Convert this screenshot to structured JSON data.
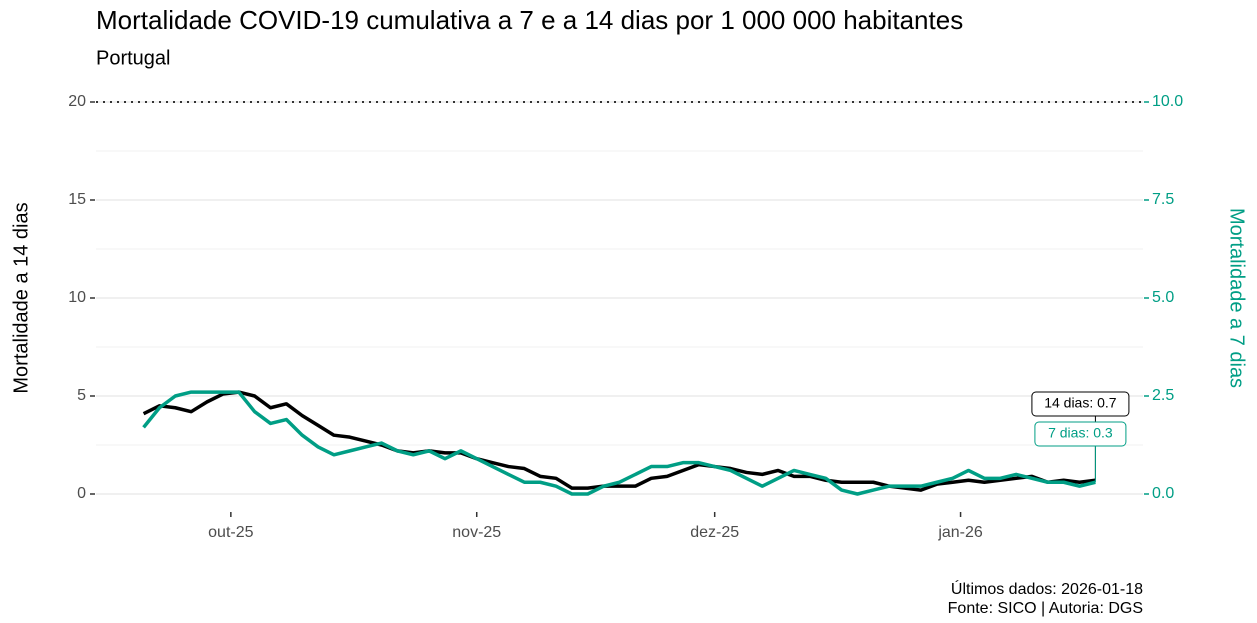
{
  "chart_data": {
    "type": "line",
    "title": "Mortalidade COVID-19 cumulativa a 7 e a 14 dias por 1 000 000 habitantes",
    "subtitle": "Portugal",
    "y_label": "Mortalidade a 14 dias",
    "y2_label": "Mortalidade a 7 dias",
    "caption": [
      "Últimos dados: 2026-01-18",
      "Fonte: SICO | Autoria: DGS"
    ],
    "x": [
      "2025-09-20",
      "2025-09-22",
      "2025-09-24",
      "2025-09-26",
      "2025-09-28",
      "2025-09-30",
      "2025-10-02",
      "2025-10-04",
      "2025-10-06",
      "2025-10-08",
      "2025-10-10",
      "2025-10-12",
      "2025-10-14",
      "2025-10-16",
      "2025-10-18",
      "2025-10-20",
      "2025-10-22",
      "2025-10-24",
      "2025-10-26",
      "2025-10-28",
      "2025-10-30",
      "2025-11-01",
      "2025-11-03",
      "2025-11-05",
      "2025-11-07",
      "2025-11-09",
      "2025-11-11",
      "2025-11-13",
      "2025-11-15",
      "2025-11-17",
      "2025-11-19",
      "2025-11-21",
      "2025-11-23",
      "2025-11-25",
      "2025-11-27",
      "2025-11-29",
      "2025-12-01",
      "2025-12-03",
      "2025-12-05",
      "2025-12-07",
      "2025-12-09",
      "2025-12-11",
      "2025-12-13",
      "2025-12-15",
      "2025-12-17",
      "2025-12-19",
      "2025-12-21",
      "2025-12-23",
      "2025-12-25",
      "2025-12-27",
      "2025-12-29",
      "2025-12-31",
      "2026-01-02",
      "2026-01-04",
      "2026-01-06",
      "2026-01-08",
      "2026-01-10",
      "2026-01-12",
      "2026-01-14",
      "2026-01-16",
      "2026-01-18"
    ],
    "series": [
      {
        "color": "#000000",
        "axis": "y",
        "end_label": "14 dias: 0.7",
        "values": [
          4.1,
          4.5,
          4.4,
          4.2,
          4.7,
          5.1,
          5.2,
          5.0,
          4.4,
          4.6,
          4.0,
          3.5,
          3.0,
          2.9,
          2.7,
          2.5,
          2.2,
          2.1,
          2.2,
          2.1,
          2.1,
          1.8,
          1.6,
          1.4,
          1.3,
          0.9,
          0.8,
          0.3,
          0.3,
          0.4,
          0.4,
          0.4,
          0.8,
          0.9,
          1.2,
          1.5,
          1.4,
          1.3,
          1.1,
          1.0,
          1.2,
          0.9,
          0.9,
          0.7,
          0.6,
          0.6,
          0.6,
          0.4,
          0.3,
          0.2,
          0.5,
          0.6,
          0.7,
          0.6,
          0.7,
          0.8,
          0.9,
          0.6,
          0.7,
          0.6,
          0.7
        ]
      },
      {
        "color": "#009e85",
        "axis": "y2",
        "end_label": "7 dias: 0.3",
        "values": [
          1.7,
          2.2,
          2.5,
          2.6,
          2.6,
          2.6,
          2.6,
          2.1,
          1.8,
          1.9,
          1.5,
          1.2,
          1.0,
          1.1,
          1.2,
          1.3,
          1.1,
          1.0,
          1.1,
          0.9,
          1.1,
          0.9,
          0.7,
          0.5,
          0.3,
          0.3,
          0.2,
          0.0,
          0.0,
          0.2,
          0.3,
          0.5,
          0.7,
          0.7,
          0.8,
          0.8,
          0.7,
          0.6,
          0.4,
          0.2,
          0.4,
          0.6,
          0.5,
          0.4,
          0.1,
          0.0,
          0.1,
          0.2,
          0.2,
          0.2,
          0.3,
          0.4,
          0.6,
          0.4,
          0.4,
          0.5,
          0.4,
          0.3,
          0.3,
          0.2,
          0.3
        ]
      }
    ],
    "xlim": [
      "2025-09-14",
      "2026-01-24"
    ],
    "xticks": [
      {
        "value": "2025-10-01",
        "label": "out-25"
      },
      {
        "value": "2025-11-01",
        "label": "nov-25"
      },
      {
        "value": "2025-12-01",
        "label": "dez-25"
      },
      {
        "value": "2026-01-01",
        "label": "jan-26"
      }
    ],
    "ylim": [
      0,
      20
    ],
    "yticks": [
      0,
      5,
      10,
      15,
      20
    ],
    "y2lim": [
      0,
      10
    ],
    "y2ticks": [
      {
        "value": 0,
        "label": "0.0"
      },
      {
        "value": 2.5,
        "label": "2.5"
      },
      {
        "value": 5,
        "label": "5.0"
      },
      {
        "value": 7.5,
        "label": "7.5"
      },
      {
        "value": 10,
        "label": "10.0"
      }
    ],
    "y2_color": "#009e85",
    "grid": true
  }
}
